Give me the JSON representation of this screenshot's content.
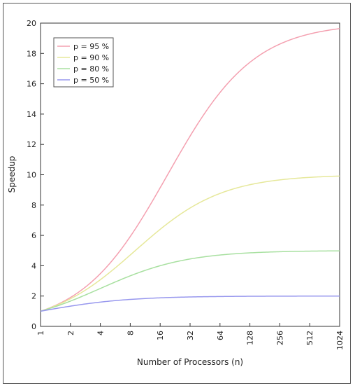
{
  "chart_data": {
    "type": "line",
    "xlabel": "Number of Processors (n)",
    "ylabel": "Speedup",
    "x_scale": "log2",
    "x": [
      1,
      2,
      4,
      8,
      16,
      32,
      64,
      128,
      256,
      512,
      1024
    ],
    "x_tick_labels": [
      "1",
      "2",
      "4",
      "8",
      "16",
      "32",
      "64",
      "128",
      "256",
      "512",
      "1024"
    ],
    "xlim": [
      1,
      1024
    ],
    "ylim": [
      0,
      20
    ],
    "y_ticks": [
      0,
      2,
      4,
      6,
      8,
      10,
      12,
      14,
      16,
      18,
      20
    ],
    "y_tick_labels": [
      "0",
      "2",
      "4",
      "6",
      "8",
      "10",
      "12",
      "14",
      "16",
      "18",
      "20"
    ],
    "grid": false,
    "legend_position": "top-left",
    "series": [
      {
        "name": "p = 95 %",
        "color": "#f4a0b0",
        "p": 0.95,
        "values": [
          1.0,
          1.9,
          3.48,
          5.93,
          9.14,
          12.55,
          15.42,
          17.41,
          18.6,
          19.28,
          19.64
        ]
      },
      {
        "name": "p = 90 %",
        "color": "#e6e89a",
        "p": 0.9,
        "values": [
          1.0,
          1.82,
          3.08,
          4.71,
          6.4,
          7.8,
          8.77,
          9.34,
          9.66,
          9.83,
          9.91
        ]
      },
      {
        "name": "p = 80 %",
        "color": "#a8e0a0",
        "p": 0.8,
        "values": [
          1.0,
          1.67,
          2.5,
          3.33,
          4.0,
          4.44,
          4.71,
          4.85,
          4.92,
          4.96,
          4.98
        ]
      },
      {
        "name": "p = 50 %",
        "color": "#9898ee",
        "p": 0.5,
        "values": [
          1.0,
          1.33,
          1.6,
          1.78,
          1.88,
          1.94,
          1.97,
          1.98,
          1.99,
          2.0,
          2.0
        ]
      }
    ]
  }
}
